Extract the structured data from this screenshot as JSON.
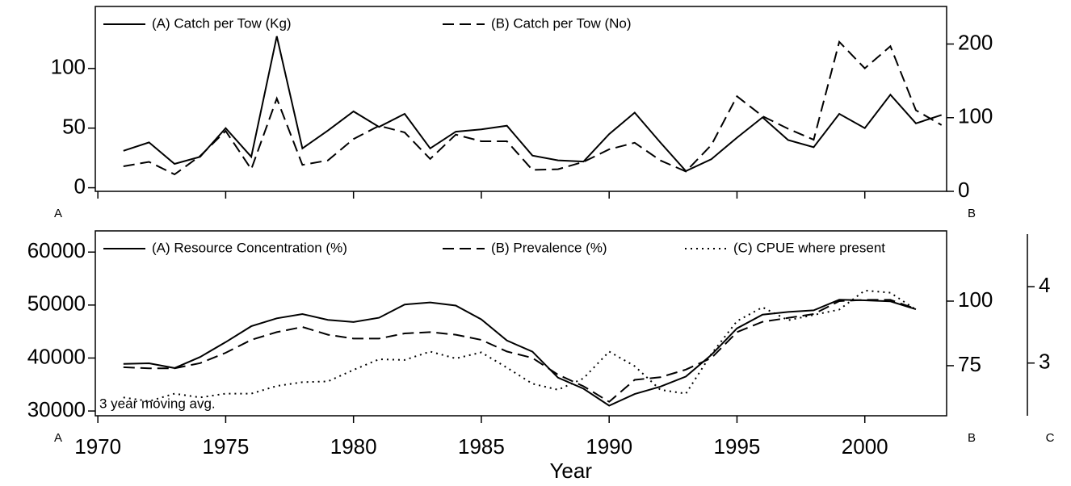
{
  "chart_data": [
    {
      "type": "line",
      "x": [
        1971,
        1972,
        1973,
        1974,
        1975,
        1976,
        1977,
        1978,
        1979,
        1980,
        1981,
        1982,
        1983,
        1984,
        1985,
        1986,
        1987,
        1988,
        1989,
        1990,
        1991,
        1992,
        1993,
        1994,
        1995,
        1996,
        1997,
        1998,
        1999,
        2000,
        2001,
        2002,
        2003
      ],
      "series": [
        {
          "name": "(A) Catch per Tow (Kg)",
          "color": "#000000",
          "style": "solid",
          "axis": "y",
          "values": [
            31,
            38,
            20,
            26,
            50,
            26,
            127,
            33,
            48,
            64,
            51,
            62,
            33,
            47,
            49,
            52,
            27,
            23,
            22,
            45,
            63,
            38,
            14,
            24,
            42,
            59,
            40,
            34,
            62,
            50,
            78,
            54,
            61
          ]
        },
        {
          "name": "(B) Catch per Tow (No)",
          "color": "#000000",
          "style": "dashed",
          "axis": "y2",
          "values": [
            34,
            40,
            23,
            48,
            82,
            30,
            126,
            36,
            42,
            71,
            89,
            80,
            44,
            77,
            68,
            68,
            29,
            30,
            40,
            57,
            66,
            42,
            27,
            63,
            129,
            102,
            85,
            70,
            203,
            167,
            197,
            110,
            90
          ]
        }
      ],
      "xlim": [
        1969.9,
        2003.2
      ],
      "xticks": [
        1970,
        1975,
        1980,
        1985,
        1990,
        1995,
        2000
      ],
      "ylim": [
        -3,
        152
      ],
      "yticks": [
        0,
        50,
        100
      ],
      "y2lim": [
        0,
        251
      ],
      "y2ticks": [
        0,
        100,
        200
      ],
      "axis_labels": {
        "left": "A",
        "right": "B"
      }
    },
    {
      "type": "line",
      "x": [
        1971,
        1972,
        1973,
        1974,
        1975,
        1976,
        1977,
        1978,
        1979,
        1980,
        1981,
        1982,
        1983,
        1984,
        1985,
        1986,
        1987,
        1988,
        1989,
        1990,
        1991,
        1992,
        1993,
        1994,
        1995,
        1996,
        1997,
        1998,
        1999,
        2000,
        2001,
        2002
      ],
      "series": [
        {
          "name": "(A) Resource Concentration (%)",
          "color": "#000000",
          "style": "solid",
          "axis": "y",
          "values": [
            38900,
            39000,
            38100,
            40200,
            43000,
            46000,
            47500,
            48300,
            47200,
            46800,
            47600,
            50100,
            50500,
            49900,
            47300,
            43300,
            41200,
            36300,
            34200,
            31000,
            33200,
            34600,
            36500,
            40600,
            45600,
            48200,
            48700,
            49000,
            51000,
            50900,
            50700,
            49200
          ]
        },
        {
          "name": "(B) Prevalence (%)",
          "color": "#000000",
          "style": "dashed",
          "axis": "y2",
          "values": [
            74.4,
            74,
            74,
            76,
            80,
            85,
            88,
            90,
            87,
            85.5,
            85.5,
            87.5,
            88,
            87,
            85,
            80.5,
            78,
            71.5,
            67,
            61,
            69.5,
            70.5,
            73.5,
            78,
            88,
            92,
            93.5,
            95,
            100,
            100.5,
            100.5,
            97
          ]
        },
        {
          "name": "(C) CPUE where present",
          "color": "#000000",
          "style": "dotted",
          "axis": "y3",
          "values": [
            2.55,
            2.5,
            2.6,
            2.55,
            2.6,
            2.6,
            2.7,
            2.75,
            2.76,
            2.91,
            3.05,
            3.04,
            3.15,
            3.06,
            3.14,
            2.94,
            2.73,
            2.65,
            2.8,
            3.15,
            2.96,
            2.65,
            2.6,
            3.12,
            3.55,
            3.73,
            3.56,
            3.63,
            3.7,
            3.95,
            3.92,
            3.7
          ]
        }
      ],
      "xlim": [
        1969.9,
        2003.2
      ],
      "xticks": [
        1970,
        1975,
        1980,
        1985,
        1990,
        1995,
        2000
      ],
      "xlabel": "Year",
      "ylim": [
        29100,
        64000
      ],
      "yticks": [
        30000,
        40000,
        50000,
        60000
      ],
      "y2lim": [
        55.6,
        127.2
      ],
      "y2ticks": [
        75,
        100
      ],
      "y3lim": [
        2.31,
        4.73
      ],
      "y3ticks": [
        3,
        4
      ],
      "annotation": "3 year moving avg.",
      "axis_labels": {
        "left": "A",
        "right": "B",
        "third": "C"
      }
    }
  ]
}
